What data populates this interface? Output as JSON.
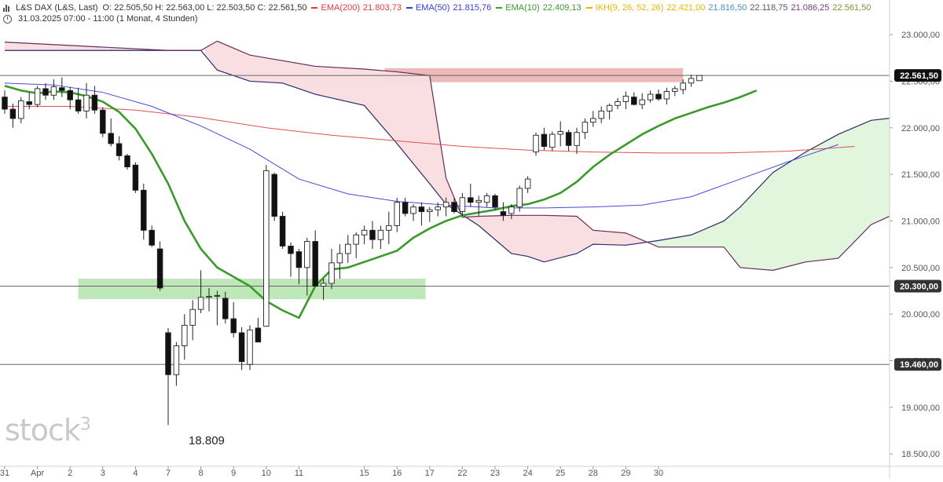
{
  "header": {
    "instrument": "L&S DAX (L&S, Last)",
    "ohlc": "O: 22.505,50  H: 22.563,00  L: 22.503,50  C: 22.561,50",
    "indicators": [
      {
        "name": "EMA(200)",
        "value": "21.803,73",
        "color": "#e03a3a"
      },
      {
        "name": "EMA(50)",
        "value": "21.815,76",
        "color": "#3a3ad6"
      },
      {
        "name": "EMA(10)",
        "value": "22.409,13",
        "color": "#3a9a2a"
      }
    ],
    "ichimoku": {
      "name": "IKH(9, 26, 52, 26)",
      "values": [
        "22.421,00",
        "21.816,50",
        "22.118,75",
        "21.086,25",
        "22.561,50"
      ],
      "colors": [
        "#f0b400",
        "#4a8fc8",
        "#555555",
        "#7a3a7a",
        "#8a8a3a"
      ]
    },
    "timerange": "31.03.2025 07:00 - 11:00  (1 Monat, 4 Stunden)"
  },
  "watermark": {
    "text": "stock",
    "sup": "3"
  },
  "low_annotation": "18.809",
  "chart_data": {
    "type": "candlestick",
    "title": "L&S DAX (L&S, Last)",
    "y_ticks": [
      {
        "value": 18500,
        "label": "18.500,00"
      },
      {
        "value": 19000,
        "label": "19.000,00"
      },
      {
        "value": 19500,
        "label": "19.500,00"
      },
      {
        "value": 20000,
        "label": "20.000,00"
      },
      {
        "value": 20500,
        "label": "20.500,00"
      },
      {
        "value": 21000,
        "label": "21.000,00"
      },
      {
        "value": 21500,
        "label": "21.500,00"
      },
      {
        "value": 22000,
        "label": "22.000,00"
      },
      {
        "value": 22500,
        "label": "22.500,00"
      },
      {
        "value": 23000,
        "label": "23.000,00"
      }
    ],
    "ylim": [
      18400,
      23220
    ],
    "x_labels": [
      {
        "label": "31",
        "index": 0
      },
      {
        "label": "Apr",
        "index": 4
      },
      {
        "label": "2",
        "index": 8
      },
      {
        "label": "3",
        "index": 12
      },
      {
        "label": "4",
        "index": 16
      },
      {
        "label": "7",
        "index": 20
      },
      {
        "label": "8",
        "index": 24
      },
      {
        "label": "9",
        "index": 28
      },
      {
        "label": "10",
        "index": 32
      },
      {
        "label": "11",
        "index": 36
      },
      {
        "label": "15",
        "index": 44
      },
      {
        "label": "16",
        "index": 48
      },
      {
        "label": "17",
        "index": 52
      },
      {
        "label": "22",
        "index": 56
      },
      {
        "label": "23",
        "index": 60
      },
      {
        "label": "24",
        "index": 64
      },
      {
        "label": "25",
        "index": 68
      },
      {
        "label": "28",
        "index": 72
      },
      {
        "label": "29",
        "index": 76
      },
      {
        "label": "30",
        "index": 80
      }
    ],
    "n_slots": 84,
    "horizontal_levels": [
      {
        "value": 22561.5,
        "label": "22.561,50"
      },
      {
        "value": 20300,
        "label": "20.300,00"
      },
      {
        "value": 19460,
        "label": "19.460,00"
      }
    ],
    "zones": [
      {
        "from_index": 46.5,
        "to_index": 83,
        "low": 22490,
        "high": 22640,
        "color": "#e8a2a2"
      },
      {
        "from_index": 9,
        "to_index": 51.5,
        "low": 20160,
        "high": 20380,
        "color": "#a8e0a0"
      }
    ],
    "candles": [
      [
        22330,
        22400,
        22150,
        22200
      ],
      [
        22200,
        22260,
        22000,
        22100
      ],
      [
        22100,
        22330,
        22050,
        22290
      ],
      [
        22280,
        22380,
        22200,
        22250
      ],
      [
        22250,
        22450,
        22220,
        22420
      ],
      [
        22420,
        22480,
        22300,
        22350
      ],
      [
        22350,
        22520,
        22300,
        22440
      ],
      [
        22430,
        22540,
        22330,
        22400
      ],
      [
        22400,
        22440,
        22200,
        22300
      ],
      [
        22300,
        22430,
        22150,
        22180
      ],
      [
        22180,
        22480,
        22100,
        22350
      ],
      [
        22350,
        22450,
        22150,
        22190
      ],
      [
        22190,
        22220,
        21900,
        21940
      ],
      [
        21940,
        22100,
        21800,
        21830
      ],
      [
        21830,
        21910,
        21650,
        21700
      ],
      [
        21700,
        21720,
        21550,
        21580
      ],
      [
        21600,
        21630,
        21300,
        21330
      ],
      [
        21330,
        21400,
        20800,
        20900
      ],
      [
        20900,
        20950,
        20720,
        20740
      ],
      [
        20700,
        20780,
        20250,
        20280
      ],
      [
        19800,
        19850,
        18809,
        19350
      ],
      [
        19350,
        19700,
        19230,
        19660
      ],
      [
        19660,
        20000,
        19510,
        19880
      ],
      [
        19880,
        20150,
        19720,
        20050
      ],
      [
        20050,
        20470,
        20010,
        20180
      ],
      [
        20180,
        20280,
        20030,
        20190
      ],
      [
        20200,
        20250,
        19880,
        20200
      ],
      [
        20170,
        20240,
        19900,
        19950
      ],
      [
        19950,
        20130,
        19750,
        19800
      ],
      [
        19800,
        19860,
        19400,
        19490
      ],
      [
        19460,
        19880,
        19400,
        19830
      ],
      [
        19850,
        19960,
        19720,
        19700
      ],
      [
        19870,
        21600,
        19870,
        21540
      ],
      [
        21500,
        21520,
        21000,
        21050
      ],
      [
        21050,
        21100,
        20700,
        20730
      ],
      [
        20730,
        20770,
        20400,
        20650
      ],
      [
        20670,
        20700,
        20320,
        20500
      ],
      [
        20500,
        20820,
        20200,
        20780
      ],
      [
        20780,
        20900,
        20300,
        20300
      ],
      [
        20300,
        20380,
        20150,
        20330
      ],
      [
        20330,
        20700,
        20270,
        20550
      ],
      [
        20550,
        20750,
        20380,
        20650
      ],
      [
        20650,
        20850,
        20550,
        20750
      ],
      [
        20750,
        20880,
        20600,
        20850
      ],
      [
        20850,
        20950,
        20750,
        20900
      ],
      [
        20900,
        21000,
        20700,
        20800
      ],
      [
        20800,
        20950,
        20700,
        20900
      ],
      [
        20900,
        21100,
        20750,
        20950
      ],
      [
        20950,
        21250,
        20880,
        21200
      ],
      [
        21200,
        21250,
        21050,
        21080
      ],
      [
        21080,
        21180,
        21000,
        21150
      ],
      [
        21150,
        21200,
        20950,
        21100
      ],
      [
        21100,
        21150,
        20990,
        21120
      ],
      [
        21120,
        21200,
        21050,
        21150
      ],
      [
        21150,
        21250,
        21050,
        21200
      ],
      [
        21200,
        21250,
        21080,
        21100
      ],
      [
        21100,
        21300,
        21050,
        21250
      ],
      [
        21250,
        21400,
        21150,
        21200
      ],
      [
        21200,
        21270,
        21050,
        21220
      ],
      [
        21200,
        21300,
        21150,
        21270
      ],
      [
        21270,
        21290,
        21120,
        21150
      ],
      [
        21100,
        21200,
        21000,
        21060
      ],
      [
        21080,
        21180,
        21020,
        21150
      ],
      [
        21150,
        21380,
        21100,
        21350
      ],
      [
        21350,
        21480,
        21300,
        21450
      ],
      [
        21740,
        21950,
        21700,
        21920
      ],
      [
        21930,
        22000,
        21760,
        21800
      ],
      [
        21790,
        21960,
        21750,
        21930
      ],
      [
        21930,
        22070,
        21800,
        21960
      ],
      [
        21950,
        21980,
        21750,
        21810
      ],
      [
        21810,
        22000,
        21720,
        21950
      ],
      [
        21950,
        22100,
        21880,
        22060
      ],
      [
        22060,
        22180,
        22010,
        22100
      ],
      [
        22100,
        22230,
        22050,
        22180
      ],
      [
        22180,
        22260,
        22090,
        22240
      ],
      [
        22240,
        22320,
        22200,
        22280
      ],
      [
        22280,
        22390,
        22200,
        22340
      ],
      [
        22330,
        22380,
        22240,
        22250
      ],
      [
        22250,
        22370,
        22200,
        22300
      ],
      [
        22300,
        22400,
        22270,
        22360
      ],
      [
        22360,
        22410,
        22290,
        22310
      ],
      [
        22310,
        22430,
        22250,
        22390
      ],
      [
        22390,
        22450,
        22340,
        22420
      ],
      [
        22410,
        22520,
        22360,
        22480
      ],
      [
        22480,
        22570,
        22440,
        22530
      ],
      [
        22505.5,
        22563,
        22503.5,
        22561.5
      ]
    ],
    "ema10": [
      [
        0,
        22450
      ],
      [
        2,
        22400
      ],
      [
        4,
        22370
      ],
      [
        6,
        22390
      ],
      [
        8,
        22380
      ],
      [
        10,
        22340
      ],
      [
        12,
        22280
      ],
      [
        14,
        22170
      ],
      [
        16,
        21990
      ],
      [
        18,
        21720
      ],
      [
        20,
        21400
      ],
      [
        22,
        21000
      ],
      [
        24,
        20700
      ],
      [
        26,
        20500
      ],
      [
        28,
        20400
      ],
      [
        30,
        20300
      ],
      [
        32,
        20140
      ],
      [
        34,
        20040
      ],
      [
        36,
        19960
      ],
      [
        38,
        20300
      ],
      [
        40,
        20480
      ],
      [
        42,
        20500
      ],
      [
        44,
        20560
      ],
      [
        46,
        20620
      ],
      [
        48,
        20680
      ],
      [
        50,
        20820
      ],
      [
        52,
        20920
      ],
      [
        54,
        21000
      ],
      [
        56,
        21060
      ],
      [
        58,
        21090
      ],
      [
        60,
        21120
      ],
      [
        62,
        21160
      ],
      [
        64,
        21180
      ],
      [
        66,
        21230
      ],
      [
        68,
        21300
      ],
      [
        70,
        21420
      ],
      [
        72,
        21580
      ],
      [
        74,
        21710
      ],
      [
        76,
        21820
      ],
      [
        78,
        21930
      ],
      [
        80,
        22020
      ],
      [
        82,
        22100
      ],
      [
        84,
        22160
      ],
      [
        86,
        22220
      ],
      [
        88,
        22270
      ],
      [
        90,
        22330
      ],
      [
        92,
        22400
      ]
    ],
    "ema50": [
      [
        0,
        22480
      ],
      [
        6,
        22460
      ],
      [
        12,
        22380
      ],
      [
        18,
        22230
      ],
      [
        24,
        22020
      ],
      [
        30,
        21770
      ],
      [
        36,
        21450
      ],
      [
        42,
        21290
      ],
      [
        48,
        21210
      ],
      [
        54,
        21170
      ],
      [
        60,
        21140
      ],
      [
        66,
        21140
      ],
      [
        72,
        21150
      ],
      [
        78,
        21170
      ],
      [
        84,
        21260
      ],
      [
        90,
        21450
      ],
      [
        96,
        21640
      ],
      [
        102,
        21820
      ]
    ],
    "ema200": [
      [
        0,
        22230
      ],
      [
        8,
        22230
      ],
      [
        16,
        22190
      ],
      [
        24,
        22110
      ],
      [
        32,
        22000
      ],
      [
        40,
        21920
      ],
      [
        48,
        21860
      ],
      [
        56,
        21800
      ],
      [
        64,
        21760
      ],
      [
        72,
        21740
      ],
      [
        80,
        21730
      ],
      [
        88,
        21730
      ],
      [
        96,
        21750
      ],
      [
        104,
        21800
      ]
    ],
    "cloud": {
      "span_a": [
        [
          0,
          22830
        ],
        [
          20,
          22830
        ],
        [
          24,
          22830
        ],
        [
          26,
          22620
        ],
        [
          30,
          22500
        ],
        [
          34,
          22480
        ],
        [
          38,
          22360
        ],
        [
          44,
          22240
        ],
        [
          48,
          21830
        ],
        [
          52,
          21400
        ],
        [
          54,
          21180
        ],
        [
          58,
          20950
        ],
        [
          62,
          20650
        ],
        [
          64,
          20620
        ],
        [
          66,
          20560
        ],
        [
          70,
          20650
        ],
        [
          72,
          20750
        ],
        [
          76,
          20740
        ],
        [
          80,
          20790
        ],
        [
          84,
          20850
        ],
        [
          88,
          21000
        ],
        [
          90,
          21150
        ],
        [
          94,
          21520
        ],
        [
          98,
          21740
        ],
        [
          102,
          21930
        ],
        [
          106,
          22080
        ],
        [
          110,
          22120
        ]
      ],
      "span_b": [
        [
          0,
          22920
        ],
        [
          20,
          22830
        ],
        [
          24,
          22830
        ],
        [
          26,
          22930
        ],
        [
          30,
          22780
        ],
        [
          34,
          22720
        ],
        [
          38,
          22660
        ],
        [
          44,
          22630
        ],
        [
          48,
          22600
        ],
        [
          52,
          22560
        ],
        [
          54,
          21460
        ],
        [
          56,
          21040
        ],
        [
          58,
          21050
        ],
        [
          62,
          21060
        ],
        [
          66,
          21060
        ],
        [
          70,
          21050
        ],
        [
          72,
          20900
        ],
        [
          76,
          20870
        ],
        [
          80,
          20720
        ],
        [
          84,
          20720
        ],
        [
          88,
          20720
        ],
        [
          90,
          20500
        ],
        [
          94,
          20470
        ],
        [
          98,
          20560
        ],
        [
          102,
          20600
        ],
        [
          106,
          20960
        ],
        [
          110,
          21120
        ]
      ]
    },
    "legend_placement": "top-left",
    "grid": false
  }
}
